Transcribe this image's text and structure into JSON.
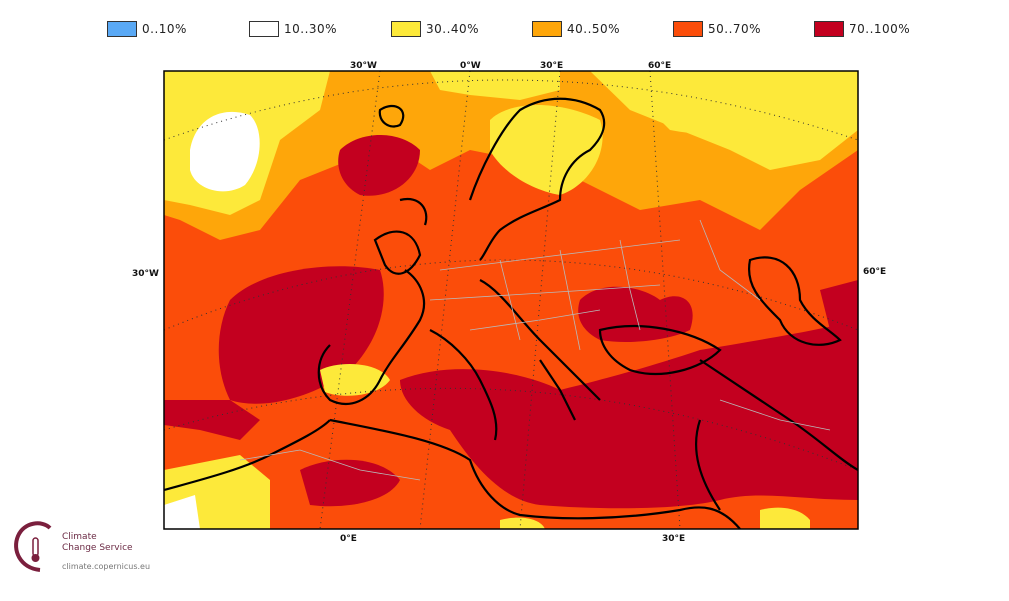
{
  "legend": [
    {
      "label": "0..10%",
      "color": "#5aa9f5"
    },
    {
      "label": "10..30%",
      "color": "#ffffff"
    },
    {
      "label": "30..40%",
      "color": "#fde93a"
    },
    {
      "label": "40..50%",
      "color": "#fea60a"
    },
    {
      "label": "50..70%",
      "color": "#fb4d0a"
    },
    {
      "label": "70..100%",
      "color": "#c3001f"
    }
  ],
  "coords": {
    "top": [
      "30°W",
      "0°W",
      "30°E",
      "60°E"
    ],
    "bottom": [
      "0°E",
      "30°E"
    ],
    "left": "30°W",
    "right": "60°E"
  },
  "logo": {
    "line1": "Climate",
    "line2": "Change Service",
    "url": "climate.copernicus.eu"
  }
}
